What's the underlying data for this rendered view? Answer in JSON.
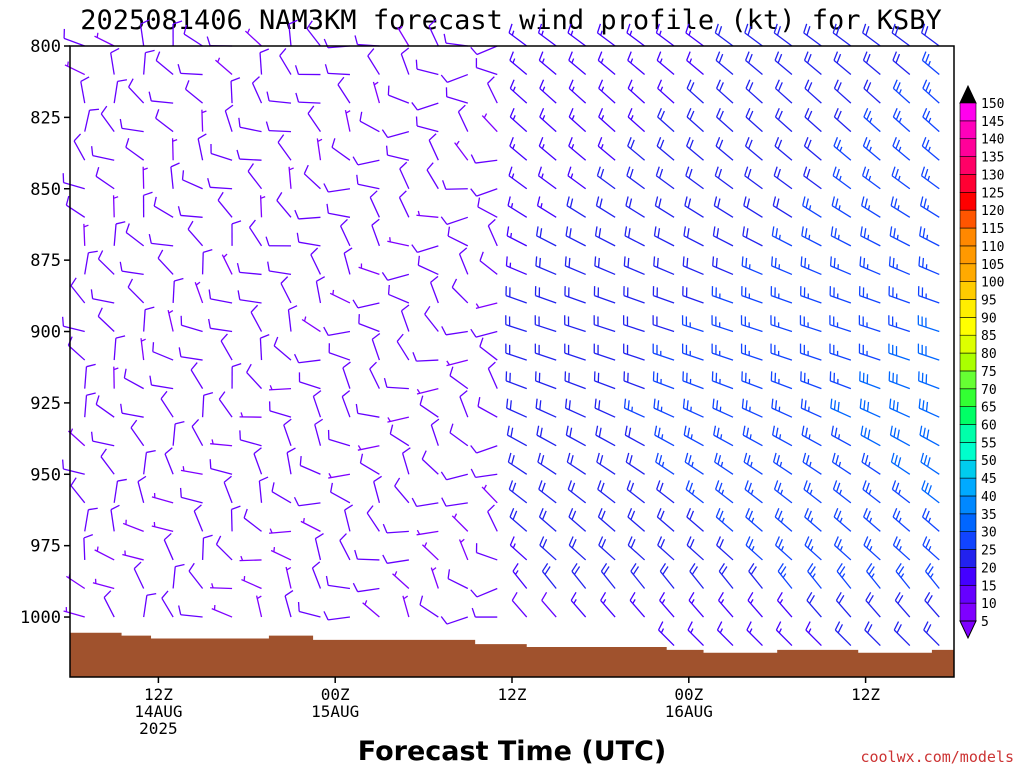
{
  "chart_data": {
    "type": "wind_barb_profile",
    "title": "2025081406 NAM3KM forecast wind profile (kt) for KSBY",
    "xlabel": "Forecast Time (UTC)",
    "ylabel": "",
    "credit": "coolwx.com/models",
    "y_axis": {
      "unit": "hPa",
      "ticks": [
        800,
        825,
        850,
        875,
        900,
        925,
        950,
        975,
        1000
      ],
      "range": [
        800,
        1021
      ],
      "direction": "increasing downward"
    },
    "x_axis": {
      "unit": "forecast hour",
      "range": [
        0,
        60
      ],
      "ticks": [
        {
          "hour": 6,
          "lines": [
            "12Z",
            "14AUG",
            "2025"
          ]
        },
        {
          "hour": 18,
          "lines": [
            "00Z",
            "15AUG"
          ]
        },
        {
          "hour": 30,
          "lines": [
            "12Z"
          ]
        },
        {
          "hour": 42,
          "lines": [
            "00Z",
            "16AUG"
          ]
        },
        {
          "hour": 54,
          "lines": [
            "12Z"
          ]
        }
      ]
    },
    "colorbar": {
      "unit": "kt",
      "labels": [
        5,
        10,
        15,
        20,
        25,
        30,
        35,
        40,
        45,
        50,
        55,
        60,
        65,
        70,
        75,
        80,
        85,
        90,
        95,
        100,
        105,
        110,
        115,
        120,
        125,
        130,
        135,
        140,
        145,
        150
      ],
      "colors": [
        "#7f00ff",
        "#6600ff",
        "#4400ff",
        "#2222ee",
        "#1144ff",
        "#0066ff",
        "#0088ff",
        "#00aaff",
        "#00ccee",
        "#00ffcc",
        "#00ffaa",
        "#00ff66",
        "#33ff33",
        "#66ff33",
        "#aaff00",
        "#ddff00",
        "#ffff00",
        "#ffee00",
        "#ffcc00",
        "#ffaa00",
        "#ff9900",
        "#ff8800",
        "#ff5500",
        "#ff0000",
        "#ff0033",
        "#ff0066",
        "#ff0099",
        "#ff00bb",
        "#ff00ee",
        "#ff00ff"
      ],
      "extends": "both"
    },
    "surface_pressure_hpa": [
      {
        "hour": 0,
        "p": 1005.5
      },
      {
        "hour": 1.7,
        "p": 1005.5
      },
      {
        "hour": 3.5,
        "p": 1006.5
      },
      {
        "hour": 5.5,
        "p": 1007.5
      },
      {
        "hour": 13.5,
        "p": 1006.5
      },
      {
        "hour": 16.5,
        "p": 1008.0
      },
      {
        "hour": 27.5,
        "p": 1009.5
      },
      {
        "hour": 31,
        "p": 1010.5
      },
      {
        "hour": 40.5,
        "p": 1011.5
      },
      {
        "hour": 43,
        "p": 1012.5
      },
      {
        "hour": 48,
        "p": 1011.5
      },
      {
        "hour": 53.5,
        "p": 1012.5
      },
      {
        "hour": 58.5,
        "p": 1011.5
      },
      {
        "hour": 60,
        "p": 1011.5
      }
    ],
    "barb_levels_hpa": [
      800,
      810,
      820,
      830,
      840,
      850,
      860,
      870,
      880,
      890,
      900,
      910,
      920,
      930,
      940,
      950,
      960,
      970,
      980,
      990,
      1000,
      1010
    ],
    "barb_times_hour": [
      1,
      3,
      5,
      7,
      9,
      11,
      13,
      15,
      17,
      19,
      21,
      23,
      25,
      27,
      29,
      31,
      33,
      35,
      37,
      39,
      41,
      43,
      45,
      47,
      49,
      51,
      53,
      55,
      57,
      59
    ],
    "wind_description": "Light (5-15 kt) variable winds through hour ~30; afterwards northwesterly winds strengthening to ~15-30 kt, strongest at mid levels near hours 45-60."
  }
}
